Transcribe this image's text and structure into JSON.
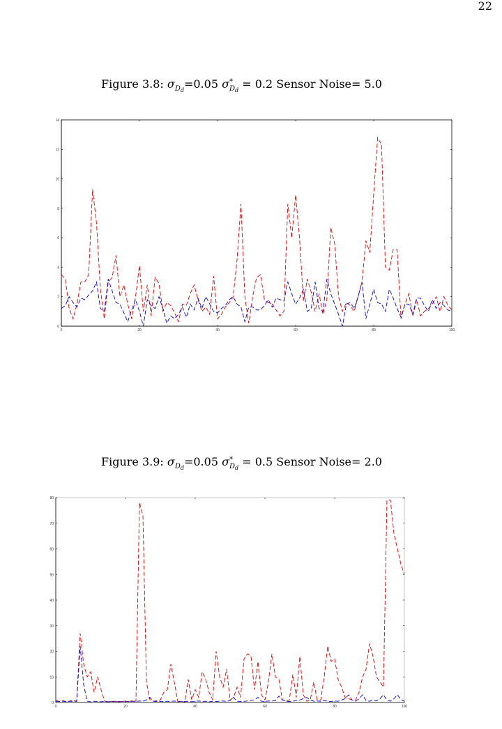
{
  "page_number": "22",
  "captions": [
    [
      "Figure 3.8: ",
      "σ",
      "D",
      "d",
      "=0.05 ",
      "σ",
      "*",
      "D",
      "d",
      " = 0.2 Sensor Noise= 5.0"
    ],
    [
      "Figure 3.9: ",
      "σ",
      "D",
      "d",
      "=0.05 ",
      "σ",
      "*",
      "D",
      "d",
      " = 0.5 Sensor Noise= 2.0"
    ]
  ],
  "chart_data": [
    {
      "type": "line",
      "linestyle": "dashed",
      "frame_color": "#000",
      "xlim": [
        0,
        100
      ],
      "xticks": [
        0,
        20,
        40,
        60,
        80,
        100
      ],
      "ylim": [
        0,
        14
      ],
      "yticks": [
        0,
        2,
        4,
        6,
        8,
        10,
        12,
        14
      ],
      "x": [
        0,
        1,
        2,
        3,
        4,
        5,
        6,
        7,
        8,
        9,
        10,
        11,
        12,
        13,
        14,
        15,
        16,
        17,
        18,
        19,
        20,
        21,
        22,
        23,
        24,
        25,
        26,
        27,
        28,
        29,
        30,
        31,
        32,
        33,
        34,
        35,
        36,
        37,
        38,
        39,
        40,
        41,
        42,
        43,
        44,
        45,
        46,
        47,
        48,
        49,
        50,
        51,
        52,
        53,
        54,
        55,
        56,
        57,
        58,
        59,
        60,
        61,
        62,
        63,
        64,
        65,
        66,
        67,
        68,
        69,
        70,
        71,
        72,
        73,
        74,
        75,
        76,
        77,
        78,
        79,
        80,
        81,
        82,
        83,
        84,
        85,
        86,
        87,
        88,
        89,
        90,
        91,
        92,
        93,
        94,
        95,
        96,
        97,
        98,
        99,
        100
      ],
      "series": [
        {
          "color": "#e00000",
          "values": [
            3.5,
            3.2,
            1.2,
            0.5,
            1.5,
            3,
            3,
            3.5,
            9.3,
            7,
            2.5,
            0.5,
            3,
            3.3,
            4.8,
            2,
            2.8,
            1.5,
            0.5,
            2,
            4.1,
            1,
            2.8,
            0.7,
            3.3,
            2.9,
            1,
            1.6,
            1.4,
            0.9,
            0.3,
            1.5,
            1.4,
            2.2,
            2.8,
            1.8,
            1,
            1.3,
            0.8,
            3.4,
            0.5,
            0.8,
            1.3,
            1.6,
            2,
            4.5,
            8.3,
            2,
            0.2,
            2,
            3.3,
            3.5,
            1.8,
            1.6,
            1.5,
            1.1,
            0.7,
            1,
            8.3,
            6,
            8.9,
            6,
            1.7,
            3.2,
            2.3,
            1,
            2.2,
            0.8,
            1.8,
            6.7,
            5.6,
            2,
            1,
            1.6,
            1.4,
            1,
            2,
            3,
            5.8,
            5,
            9,
            12.8,
            12.3,
            4,
            3.8,
            5.2,
            5.2,
            0.5,
            1.5,
            2.2,
            0.7,
            1.8,
            0.7,
            1,
            1.2,
            1.5,
            2,
            1,
            2,
            1.4,
            1.1
          ]
        },
        {
          "color": "#0000e0",
          "values": [
            1.2,
            1.4,
            2,
            1.6,
            1.3,
            1.9,
            1.8,
            2.1,
            2.4,
            3,
            1.2,
            1,
            3.2,
            2.4,
            1.6,
            1.5,
            0.9,
            0.3,
            1.1,
            1.8,
            1,
            0,
            1.8,
            1.4,
            1.2,
            2,
            1.2,
            0.2,
            0.7,
            0.5,
            0.8,
            1.3,
            0.6,
            1.5,
            1.1,
            1.9,
            1.2,
            2,
            1.5,
            1,
            0.9,
            1.2,
            1.4,
            1.8,
            2,
            1.5,
            1.3,
            0.3,
            1.3,
            1.3,
            1.1,
            1.1,
            1.4,
            1.8,
            1.3,
            1.9,
            1.8,
            1.7,
            3,
            2.2,
            1.5,
            1.9,
            2.5,
            1,
            1.2,
            3,
            1.2,
            1,
            3.2,
            2.2,
            1.5,
            0.8,
            0,
            1.5,
            1.6,
            1.2,
            2,
            3,
            0.5,
            1.5,
            2.5,
            1.6,
            1.5,
            1,
            2.5,
            1.9,
            1.2,
            0.6,
            1.5,
            1.5,
            0.8,
            1.9,
            1.9,
            1.4,
            1,
            1.8,
            1.2,
            1.6,
            1.4,
            1.1,
            1
          ]
        }
      ]
    },
    {
      "type": "line",
      "linestyle": "dashed",
      "frame_color": "#bbb",
      "xlim": [
        0,
        100
      ],
      "xticks": [
        0,
        20,
        40,
        60,
        80,
        100
      ],
      "ylim": [
        0,
        80
      ],
      "yticks": [
        0,
        10,
        20,
        30,
        40,
        50,
        60,
        70,
        80
      ],
      "x": [
        0,
        1,
        2,
        3,
        4,
        5,
        6,
        7,
        8,
        9,
        10,
        11,
        12,
        13,
        14,
        15,
        16,
        17,
        18,
        19,
        20,
        21,
        22,
        23,
        24,
        25,
        26,
        27,
        28,
        29,
        30,
        31,
        32,
        33,
        34,
        35,
        36,
        37,
        38,
        39,
        40,
        41,
        42,
        43,
        44,
        45,
        46,
        47,
        48,
        49,
        50,
        51,
        52,
        53,
        54,
        55,
        56,
        57,
        58,
        59,
        60,
        61,
        62,
        63,
        64,
        65,
        66,
        67,
        68,
        69,
        70,
        71,
        72,
        73,
        74,
        75,
        76,
        77,
        78,
        79,
        80,
        81,
        82,
        83,
        84,
        85,
        86,
        87,
        88,
        89,
        90,
        91,
        92,
        93,
        94,
        95,
        96,
        97,
        98,
        99,
        100
      ],
      "series": [
        {
          "color": "#e00000",
          "values": [
            0.8,
            0.5,
            0.8,
            0.3,
            0.6,
            0.8,
            0.5,
            27,
            15,
            10,
            12,
            4,
            10,
            5,
            0.5,
            0.3,
            0.5,
            0.2,
            0.5,
            0.3,
            0.6,
            0.4,
            0.8,
            0.5,
            78,
            73,
            8,
            1,
            0.5,
            0.8,
            1,
            4,
            5,
            15,
            8,
            0.3,
            0.5,
            0.2,
            9,
            1,
            5,
            2,
            12,
            9,
            4,
            1,
            20,
            10,
            6,
            13,
            1,
            2,
            6,
            2,
            17,
            19,
            18,
            5,
            16,
            3,
            1,
            8,
            19,
            10,
            9,
            1,
            0.5,
            1,
            11,
            2,
            18,
            3,
            0.5,
            1,
            8,
            1,
            1,
            10,
            22,
            16,
            17,
            9,
            6,
            2,
            1.5,
            1,
            1,
            4,
            10,
            13,
            23,
            18,
            10,
            8,
            6,
            79,
            79,
            66,
            60,
            54,
            50
          ]
        },
        {
          "color": "#0000e0",
          "values": [
            0.5,
            0.4,
            0.5,
            0.3,
            0.5,
            0.4,
            0.5,
            22,
            7,
            0.5,
            0.3,
            0.5,
            0.4,
            0.3,
            0.5,
            0.3,
            0.4,
            0.5,
            0.3,
            0.4,
            0.5,
            0.3,
            0.5,
            0.4,
            0.6,
            0.5,
            1,
            2,
            0.5,
            0.4,
            0.5,
            0.3,
            0.5,
            0.4,
            0.6,
            0.3,
            0.5,
            0.4,
            0.5,
            0.3,
            0.5,
            0.6,
            0.4,
            0.5,
            0.3,
            0.5,
            0.4,
            0.5,
            0.6,
            0.4,
            0.8,
            2,
            0.5,
            0.4,
            0.5,
            0.6,
            0.8,
            1,
            2,
            0.5,
            0.4,
            0.6,
            0.5,
            0.8,
            2.5,
            1,
            0.5,
            0.4,
            0.5,
            0.8,
            1,
            1.5,
            2,
            1,
            0.5,
            0.6,
            0.5,
            0.8,
            0.5,
            0.4,
            0.6,
            0.5,
            1,
            1.5,
            3,
            1,
            0.5,
            1.5,
            3,
            0.8,
            0.5,
            1,
            0.6,
            1.5,
            3,
            1,
            0.5,
            1.5,
            3,
            1.2,
            0.5
          ]
        }
      ]
    }
  ]
}
